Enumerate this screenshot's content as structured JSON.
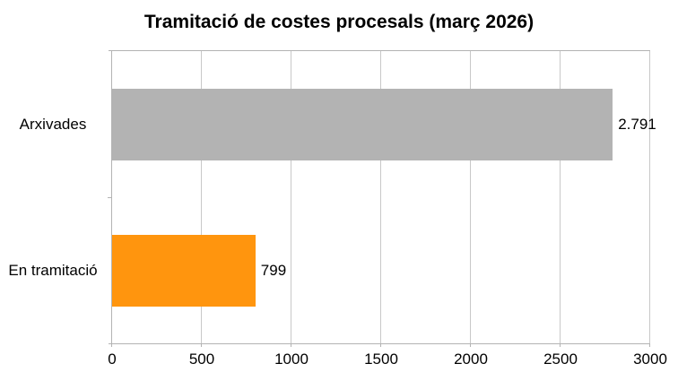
{
  "title": "Tramitació de costes procesals (març 2026)",
  "chart_data": {
    "type": "bar",
    "orientation": "horizontal",
    "title": "Tramitació de costes procesals (març 2026)",
    "categories": [
      "Arxivades",
      "En tramitació"
    ],
    "values": [
      2791,
      799
    ],
    "value_labels": [
      "2.791",
      "799"
    ],
    "bar_colors": [
      "#b3b3b3",
      "#ff950e"
    ],
    "xlabel": "",
    "ylabel": "",
    "xlim": [
      0,
      3000
    ],
    "x_tick_values": [
      0,
      500,
      1000,
      1500,
      2000,
      2500,
      3000
    ],
    "x_tick_labels": [
      "0",
      "500",
      "1000",
      "1500",
      "2000",
      "2500",
      "3000"
    ],
    "grid": "vertical-gridlines-on",
    "legend": "none",
    "colors": {
      "axis": "#b3b3b3",
      "gridline": "#c8c8c8",
      "background": "#ffffff",
      "text": "#000000"
    }
  }
}
